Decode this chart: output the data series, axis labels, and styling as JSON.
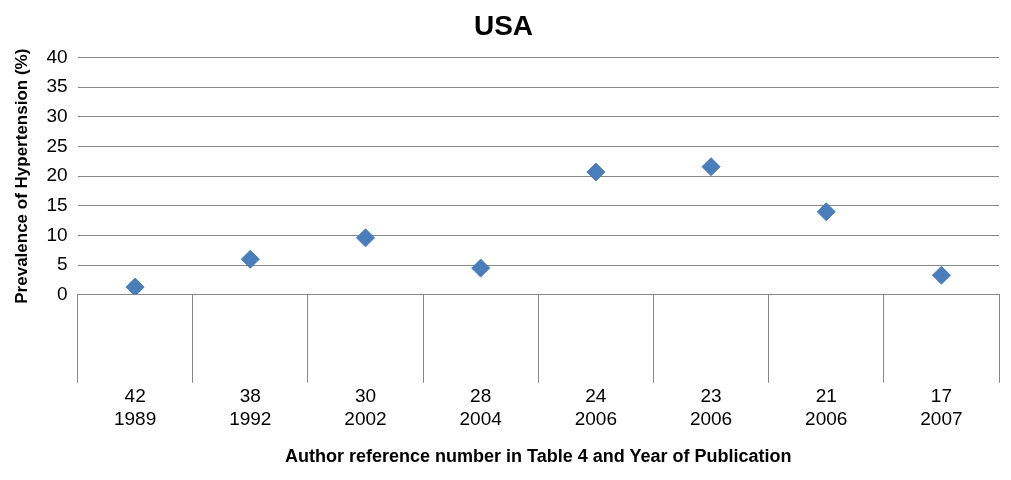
{
  "chart_data": {
    "type": "scatter",
    "title": "USA",
    "xlabel": "Author reference number in Table 4 and Year of Publication",
    "ylabel": "Prevalence of Hypertension (%)",
    "categories": [
      "42\n1989",
      "38\n1992",
      "30\n2002",
      "28\n2004",
      "24\n2006",
      "23\n2006",
      "21\n2006",
      "17\n2007"
    ],
    "series": [
      {
        "color": "#4a7ebb",
        "values": [
          1.3,
          6.0,
          9.6,
          4.5,
          20.7,
          21.6,
          14.0,
          3.3
        ]
      }
    ],
    "ylim": [
      0,
      40
    ],
    "yticks": [
      0,
      5,
      10,
      15,
      20,
      25,
      30,
      35,
      40
    ],
    "grid": "y",
    "legend": false,
    "marker": "diamond"
  }
}
